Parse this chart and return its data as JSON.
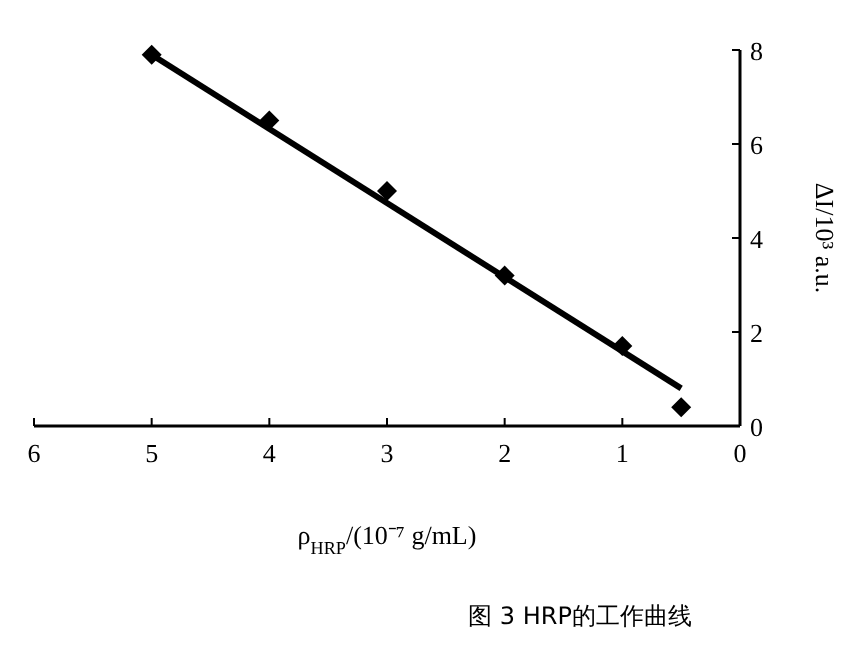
{
  "chart_data": {
    "type": "scatter",
    "xlabel": "ρ$_{HRP}$/(10⁻⁷ g/mL)",
    "ylabel": "ΔI/10³ a.u.",
    "annotations": [
      "图 3 HRP的工作曲线"
    ],
    "xlim": [
      6,
      0
    ],
    "xticks": [
      6,
      5,
      4,
      3,
      2,
      1,
      0
    ],
    "ylim": [
      0,
      8
    ],
    "yticks": [
      0,
      2,
      4,
      6,
      8
    ],
    "grid": false,
    "series": [
      {
        "marker": "diamond",
        "color": "#000000",
        "x": [
          5,
          4,
          3,
          2,
          1,
          0.5
        ],
        "values": [
          7.9,
          6.5,
          5.0,
          3.2,
          1.7,
          0.4
        ]
      },
      {
        "type": "line",
        "marker": "none",
        "line_style": "solid",
        "color": "#000000",
        "x": [
          5,
          0.5
        ],
        "values": [
          7.9,
          0.8
        ]
      }
    ]
  }
}
